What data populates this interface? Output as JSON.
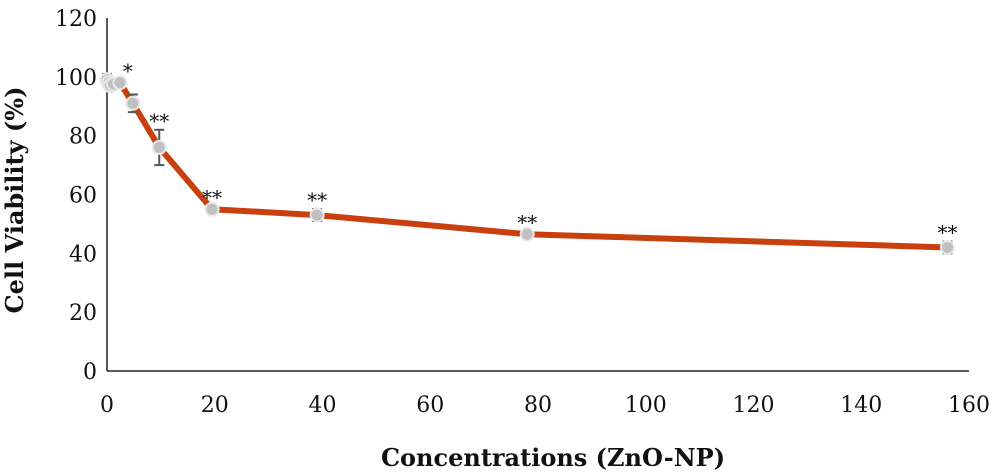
{
  "chart_data": {
    "type": "line",
    "title": "",
    "xlabel": "Concentrations (ZnO-NP)",
    "ylabel": "Cell Viability (%)",
    "xlim": [
      0,
      160
    ],
    "ylim": [
      0,
      120
    ],
    "xticks": [
      0,
      20,
      40,
      60,
      80,
      100,
      120,
      140,
      160
    ],
    "yticks": [
      0,
      20,
      40,
      60,
      80,
      100,
      120
    ],
    "grid": false,
    "legend": "none",
    "series": [
      {
        "name": "Cell Viability",
        "color": "#c8400e",
        "marker_color": "#c0c0c0",
        "x": [
          0,
          0.3,
          0.6,
          1.2,
          2.4,
          4.8,
          9.7,
          19.5,
          39,
          78,
          156
        ],
        "y": [
          99,
          98,
          97,
          97.5,
          98,
          91,
          76,
          55,
          53,
          46.5,
          42
        ],
        "error": [
          2,
          1.5,
          1.5,
          1.5,
          1,
          3,
          6,
          1,
          2,
          1,
          2
        ],
        "significance": [
          "",
          "",
          "",
          "",
          "*",
          "",
          "**",
          "**",
          "**",
          "**",
          "**"
        ]
      }
    ]
  }
}
